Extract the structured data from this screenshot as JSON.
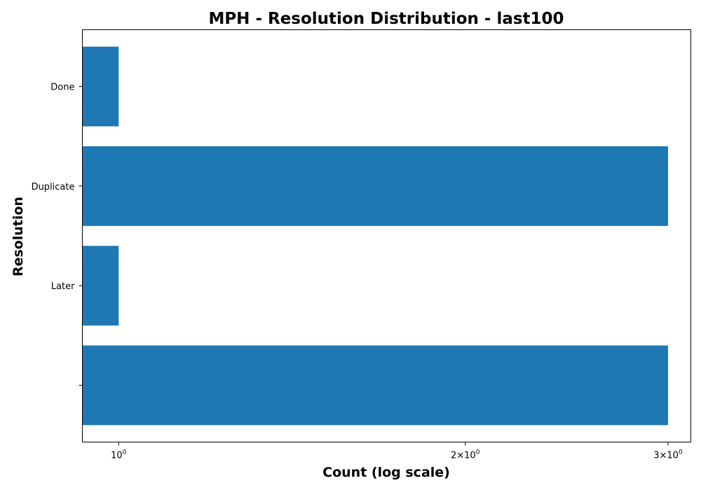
{
  "chart_data": {
    "type": "bar",
    "orientation": "horizontal",
    "title": "MPH - Resolution Distribution - last100",
    "xlabel": "Count (log scale)",
    "ylabel": "Resolution",
    "xscale": "log",
    "xlim": [
      0.93,
      3.14
    ],
    "grid": false,
    "categories": [
      "Done",
      "Duplicate",
      "Later",
      ""
    ],
    "values": [
      1,
      3,
      1,
      3
    ],
    "bar_color": "#1f77b4",
    "x_ticks": [
      {
        "value": 1,
        "base": "10",
        "exp": "0"
      },
      {
        "value": 2,
        "base": "2×10",
        "exp": "0"
      },
      {
        "value": 3,
        "base": "3×10",
        "exp": "0"
      }
    ]
  }
}
